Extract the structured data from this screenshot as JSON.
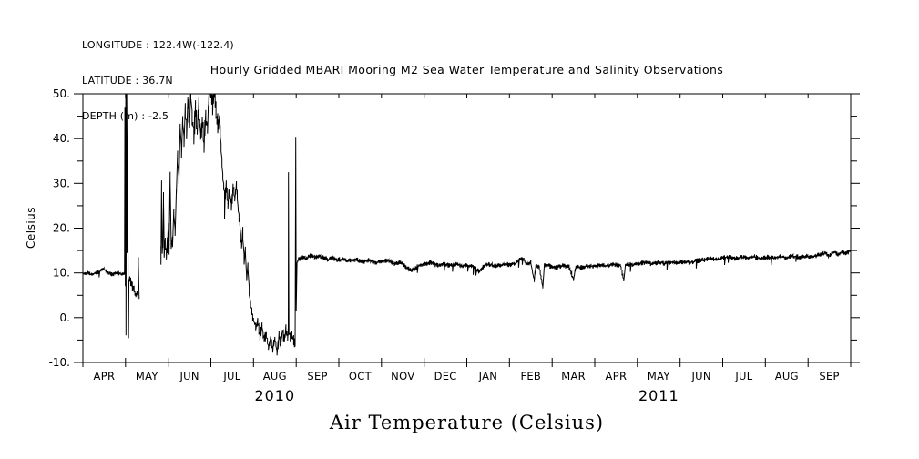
{
  "header": {
    "longitude": "LONGITUDE : 122.4W(-122.4)",
    "latitude": "LATITUDE : 36.7N",
    "depth": "DEPTH (m) : -2.5"
  },
  "chart_data": {
    "type": "line",
    "title": "Hourly Gridded MBARI Mooring M2 Sea Water Temperature and Salinity Observations",
    "bottom_title": "Air Temperature (Celsius)",
    "ylabel": "Celsius",
    "ylim": [
      -10,
      50
    ],
    "y_minor_step": 5,
    "y_major_ticks": [
      {
        "v": 50,
        "label": "50."
      },
      {
        "v": 40,
        "label": "40."
      },
      {
        "v": 30,
        "label": "30."
      },
      {
        "v": 20,
        "label": "20."
      },
      {
        "v": 10,
        "label": "10."
      },
      {
        "v": 0,
        "label": "0."
      },
      {
        "v": -10,
        "label": "-10."
      }
    ],
    "month_labels": [
      "APR",
      "MAY",
      "JUN",
      "JUL",
      "AUG",
      "SEP",
      "OCT",
      "NOV",
      "DEC",
      "JAN",
      "FEB",
      "MAR",
      "APR",
      "MAY",
      "JUN",
      "JUL",
      "AUG",
      "SEP"
    ],
    "years": [
      {
        "label": "2010",
        "center_month": 4.5
      },
      {
        "label": "2011",
        "center_month": 13.5
      }
    ],
    "line_color": "#000000",
    "background_color": "#ffffff",
    "series": {
      "name": "hourly air temperature (Celsius), Apr 2010 - Sep 2011",
      "clip_max": 50,
      "x_unit": "months since 2010-04-01",
      "segments": [
        [
          [
            0.0,
            9.8
          ],
          [
            0.1,
            10.0
          ],
          [
            0.2,
            9.6
          ],
          [
            0.3,
            9.9
          ],
          [
            0.4,
            10.4
          ],
          [
            0.47,
            11.0
          ],
          [
            0.52,
            10.6
          ],
          [
            0.6,
            9.9
          ],
          [
            0.7,
            9.7
          ],
          [
            0.8,
            10.1
          ],
          [
            0.9,
            9.7
          ],
          [
            0.96,
            9.9
          ],
          [
            0.975,
            10.2
          ],
          [
            0.985,
            46
          ],
          [
            0.995,
            8
          ],
          [
            1.005,
            50
          ],
          [
            1.01,
            -3
          ],
          [
            1.02,
            51
          ],
          [
            1.035,
            15
          ],
          [
            1.05,
            49
          ],
          [
            1.06,
            9
          ],
          [
            1.07,
            -4.5
          ],
          [
            1.08,
            8.5
          ],
          [
            1.12,
            8.0
          ],
          [
            1.16,
            7.0
          ],
          [
            1.2,
            6.2
          ],
          [
            1.24,
            4.8
          ],
          [
            1.27,
            5.6
          ],
          [
            1.29,
            4.4
          ],
          [
            1.3,
            13
          ],
          [
            1.32,
            4.2
          ]
        ],
        [
          [
            1.83,
            14
          ],
          [
            1.845,
            29
          ],
          [
            1.86,
            15.5
          ],
          [
            1.875,
            17
          ],
          [
            1.89,
            28
          ],
          [
            1.905,
            14.5
          ],
          [
            1.93,
            16
          ],
          [
            1.955,
            14
          ],
          [
            1.98,
            16.5
          ],
          [
            2.0,
            21
          ],
          [
            2.02,
            14.5
          ],
          [
            2.045,
            31
          ],
          [
            2.07,
            16
          ],
          [
            2.1,
            17.5
          ],
          [
            2.13,
            23
          ],
          [
            2.16,
            19
          ],
          [
            2.19,
            28
          ],
          [
            2.22,
            35
          ],
          [
            2.25,
            30
          ],
          [
            2.28,
            43
          ],
          [
            2.31,
            37
          ],
          [
            2.34,
            45
          ],
          [
            2.37,
            40
          ],
          [
            2.4,
            46
          ],
          [
            2.43,
            42
          ],
          [
            2.46,
            49
          ],
          [
            2.5,
            43
          ],
          [
            2.53,
            51
          ],
          [
            2.56,
            45
          ],
          [
            2.6,
            41
          ],
          [
            2.64,
            46
          ],
          [
            2.68,
            42
          ],
          [
            2.72,
            47
          ],
          [
            2.76,
            40
          ],
          [
            2.8,
            44
          ],
          [
            2.84,
            38
          ],
          [
            2.88,
            45
          ],
          [
            2.92,
            42
          ],
          [
            2.96,
            50
          ],
          [
            3.0,
            52
          ],
          [
            3.04,
            47
          ],
          [
            3.08,
            51
          ],
          [
            3.12,
            46
          ],
          [
            3.16,
            43
          ],
          [
            3.2,
            45
          ],
          [
            3.24,
            38
          ],
          [
            3.28,
            31
          ],
          [
            3.32,
            27
          ],
          [
            3.36,
            29
          ],
          [
            3.4,
            26
          ],
          [
            3.44,
            28
          ],
          [
            3.48,
            25
          ],
          [
            3.52,
            29
          ],
          [
            3.56,
            26
          ],
          [
            3.6,
            30
          ],
          [
            3.64,
            24
          ],
          [
            3.68,
            21
          ],
          [
            3.72,
            16
          ],
          [
            3.75,
            19
          ],
          [
            3.78,
            13
          ],
          [
            3.81,
            15
          ],
          [
            3.84,
            9
          ],
          [
            3.87,
            11
          ],
          [
            3.9,
            6
          ],
          [
            3.93,
            3
          ],
          [
            3.96,
            1
          ],
          [
            4.0,
            -0.5
          ],
          [
            4.05,
            -2
          ],
          [
            4.1,
            -1
          ],
          [
            4.15,
            -4
          ],
          [
            4.2,
            -2
          ],
          [
            4.25,
            -5
          ],
          [
            4.3,
            -3.5
          ],
          [
            4.35,
            -6.5
          ],
          [
            4.4,
            -4.5
          ],
          [
            4.45,
            -7
          ],
          [
            4.5,
            -5
          ],
          [
            4.55,
            -7.5
          ],
          [
            4.6,
            -4
          ],
          [
            4.64,
            -6
          ],
          [
            4.68,
            -3
          ],
          [
            4.72,
            -5
          ],
          [
            4.76,
            -2.5
          ],
          [
            4.8,
            -4
          ],
          [
            4.815,
            -3
          ],
          [
            4.82,
            32
          ],
          [
            4.83,
            -3
          ],
          [
            4.86,
            -4.5
          ],
          [
            4.9,
            -3.5
          ],
          [
            4.94,
            -5
          ],
          [
            4.975,
            -6
          ],
          [
            4.99,
            40
          ],
          [
            5.0,
            2
          ],
          [
            5.02,
            12.2
          ],
          [
            5.06,
            13.0
          ],
          [
            5.15,
            13.4
          ],
          [
            5.25,
            13.2
          ],
          [
            5.35,
            14.0
          ],
          [
            5.45,
            13.5
          ],
          [
            5.55,
            13.8
          ],
          [
            5.65,
            13.3
          ],
          [
            5.75,
            13.0
          ],
          [
            5.85,
            13.4
          ],
          [
            5.95,
            12.9
          ],
          [
            6.1,
            13.1
          ],
          [
            6.25,
            12.7
          ],
          [
            6.4,
            13.0
          ],
          [
            6.55,
            12.5
          ],
          [
            6.7,
            12.8
          ],
          [
            6.85,
            12.3
          ],
          [
            7.0,
            12.5
          ],
          [
            7.15,
            12.8
          ],
          [
            7.3,
            12.1
          ],
          [
            7.45,
            12.4
          ],
          [
            7.6,
            11.2
          ],
          [
            7.7,
            10.6
          ],
          [
            7.8,
            11.1
          ],
          [
            7.9,
            11.8
          ],
          [
            8.0,
            12.0
          ],
          [
            8.15,
            12.3
          ],
          [
            8.3,
            11.7
          ],
          [
            8.45,
            12.1
          ],
          [
            8.6,
            11.6
          ],
          [
            8.75,
            12.0
          ],
          [
            8.9,
            11.5
          ],
          [
            9.0,
            11.8
          ],
          [
            9.15,
            11.3
          ],
          [
            9.3,
            10.3
          ],
          [
            9.4,
            11.6
          ],
          [
            9.55,
            11.9
          ],
          [
            9.7,
            11.5
          ],
          [
            9.85,
            12.0
          ],
          [
            10.0,
            11.8
          ],
          [
            10.15,
            12.2
          ],
          [
            10.3,
            13.4
          ],
          [
            10.4,
            12.0
          ],
          [
            10.5,
            12.3
          ],
          [
            10.58,
            8.2
          ],
          [
            10.62,
            11.6
          ],
          [
            10.7,
            11.3
          ],
          [
            10.78,
            6.9
          ],
          [
            10.82,
            11.7
          ],
          [
            10.95,
            11.5
          ],
          [
            11.1,
            11.2
          ],
          [
            11.25,
            11.6
          ],
          [
            11.4,
            11.3
          ],
          [
            11.5,
            8.6
          ],
          [
            11.56,
            11.4
          ],
          [
            11.7,
            11.2
          ],
          [
            11.85,
            11.6
          ],
          [
            12.0,
            11.4
          ],
          [
            12.15,
            11.8
          ],
          [
            12.3,
            11.5
          ],
          [
            12.45,
            11.9
          ],
          [
            12.6,
            11.7
          ],
          [
            12.68,
            8.4
          ],
          [
            12.72,
            11.7
          ],
          [
            12.75,
            12.0
          ],
          [
            12.9,
            11.8
          ],
          [
            13.05,
            12.1
          ],
          [
            13.2,
            12.3
          ],
          [
            13.35,
            12.0
          ],
          [
            13.5,
            12.4
          ],
          [
            13.65,
            12.1
          ],
          [
            13.8,
            12.4
          ],
          [
            13.95,
            12.2
          ],
          [
            14.1,
            12.5
          ],
          [
            14.25,
            12.3
          ],
          [
            14.4,
            12.7
          ],
          [
            14.55,
            12.9
          ],
          [
            14.7,
            13.2
          ],
          [
            14.85,
            13.0
          ],
          [
            15.0,
            13.3
          ],
          [
            15.15,
            13.6
          ],
          [
            15.3,
            13.2
          ],
          [
            15.45,
            13.5
          ],
          [
            15.6,
            13.3
          ],
          [
            15.75,
            13.6
          ],
          [
            15.9,
            13.2
          ],
          [
            16.05,
            13.5
          ],
          [
            16.2,
            13.3
          ],
          [
            16.35,
            13.7
          ],
          [
            16.5,
            13.4
          ],
          [
            16.65,
            13.8
          ],
          [
            16.8,
            13.5
          ],
          [
            16.95,
            13.7
          ],
          [
            17.1,
            13.6
          ],
          [
            17.25,
            14.0
          ],
          [
            17.4,
            14.4
          ],
          [
            17.5,
            13.8
          ],
          [
            17.6,
            14.6
          ],
          [
            17.7,
            14.1
          ],
          [
            17.8,
            14.7
          ],
          [
            17.9,
            14.3
          ],
          [
            18.0,
            15.2
          ]
        ]
      ],
      "noise_bands": [
        [
          0,
          0.97,
          0.5
        ],
        [
          0.97,
          1.33,
          1.0
        ],
        [
          1.83,
          2.2,
          2.2
        ],
        [
          2.2,
          3.2,
          2.8
        ],
        [
          3.2,
          3.78,
          1.8
        ],
        [
          3.78,
          4.98,
          1.3
        ],
        [
          4.98,
          18.01,
          0.55
        ]
      ]
    }
  }
}
